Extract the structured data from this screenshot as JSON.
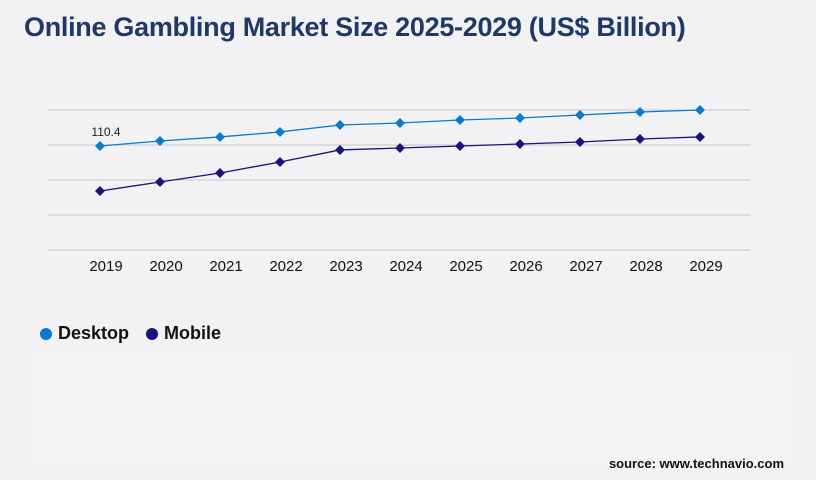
{
  "chart_data": {
    "type": "line",
    "title": "Online Gambling Market Size 2025-2029 (US$ Billion)",
    "categories": [
      "2019",
      "2020",
      "2021",
      "2022",
      "2023",
      "2024",
      "2025",
      "2026",
      "2027",
      "2028",
      "2029"
    ],
    "series": [
      {
        "name": "Desktop",
        "color": "#0a7ad1",
        "values": [
          110.4,
          115.7,
          120.0,
          125.3,
          132.7,
          134.8,
          138.0,
          140.1,
          143.3,
          146.5,
          148.6
        ]
      },
      {
        "name": "Mobile",
        "color": "#1a1478",
        "values": [
          62.6,
          72.2,
          81.7,
          93.4,
          106.2,
          108.3,
          110.4,
          112.5,
          114.6,
          117.8,
          120.0
        ]
      }
    ],
    "data_labels": [
      {
        "series": "Desktop",
        "category": "2019",
        "text": "110.4"
      }
    ],
    "ylim": [
      0,
      148.6
    ],
    "grid": true,
    "legend": "bottom-left"
  },
  "source": "source: www.technavio.com"
}
